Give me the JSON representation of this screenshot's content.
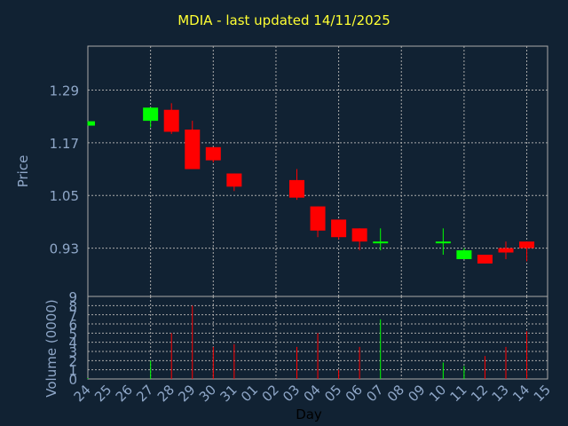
{
  "chart_data": [
    {
      "type": "candlestick",
      "title": "MDIA - last updated 14/11/2025",
      "ylabel": "Price",
      "ylim": [
        0.82,
        1.39
      ],
      "yticks": [
        "1.29",
        "1.17",
        "1.05",
        "0.93"
      ],
      "ytick_values": [
        1.29,
        1.17,
        1.05,
        0.93
      ],
      "grid": true,
      "colors": {
        "up": "#00ff00",
        "down": "#ff0000",
        "grid": "#aaaaaa",
        "text": "#8fa7c8",
        "title": "#ffff33",
        "background": "#112233"
      },
      "series": [
        {
          "x": "24",
          "open": 1.209,
          "high": 1.219,
          "low": 1.209,
          "close": 1.219
        },
        {
          "x": "27",
          "open": 1.22,
          "high": 1.25,
          "low": 1.205,
          "close": 1.25
        },
        {
          "x": "28",
          "open": 1.245,
          "high": 1.26,
          "low": 1.19,
          "close": 1.195
        },
        {
          "x": "29",
          "open": 1.2,
          "high": 1.22,
          "low": 1.11,
          "close": 1.11
        },
        {
          "x": "30",
          "open": 1.16,
          "high": 1.16,
          "low": 1.125,
          "close": 1.13
        },
        {
          "x": "31",
          "open": 1.1,
          "high": 1.1,
          "low": 1.06,
          "close": 1.07
        },
        {
          "x": "03",
          "open": 1.085,
          "high": 1.11,
          "low": 1.04,
          "close": 1.045
        },
        {
          "x": "04",
          "open": 1.025,
          "high": 1.025,
          "low": 0.955,
          "close": 0.97
        },
        {
          "x": "05",
          "open": 0.995,
          "high": 0.995,
          "low": 0.95,
          "close": 0.955
        },
        {
          "x": "06",
          "open": 0.975,
          "high": 0.975,
          "low": 0.925,
          "close": 0.945
        },
        {
          "x": "07",
          "open": 0.945,
          "high": 0.975,
          "low": 0.925,
          "close": 0.945
        },
        {
          "x": "10",
          "open": 0.945,
          "high": 0.975,
          "low": 0.915,
          "close": 0.945
        },
        {
          "x": "11",
          "open": 0.905,
          "high": 0.93,
          "low": 0.905,
          "close": 0.925
        },
        {
          "x": "12",
          "open": 0.915,
          "high": 0.915,
          "low": 0.895,
          "close": 0.895
        },
        {
          "x": "13",
          "open": 0.93,
          "high": 0.945,
          "low": 0.905,
          "close": 0.92
        },
        {
          "x": "14",
          "open": 0.945,
          "high": 0.945,
          "low": 0.9,
          "close": 0.93
        }
      ]
    },
    {
      "type": "bar",
      "ylabel": "Volume (0000)",
      "xlabel": "Day",
      "ylim": [
        0,
        9
      ],
      "yticks": [
        "9",
        "8",
        "7",
        "6",
        "5",
        "4",
        "3",
        "2",
        "1",
        "0"
      ],
      "ytick_values": [
        9,
        8,
        7,
        6,
        5,
        4,
        3,
        2,
        1,
        0
      ],
      "categories": [
        "24",
        "25",
        "26",
        "27",
        "28",
        "29",
        "30",
        "31",
        "01",
        "02",
        "03",
        "04",
        "05",
        "06",
        "07",
        "08",
        "09",
        "10",
        "11",
        "12",
        "13",
        "14",
        "15"
      ],
      "values": [
        {
          "x": "24",
          "v": 0.1,
          "dir": "up"
        },
        {
          "x": "27",
          "v": 2.0,
          "dir": "up"
        },
        {
          "x": "28",
          "v": 5.0,
          "dir": "down"
        },
        {
          "x": "29",
          "v": 8.0,
          "dir": "down"
        },
        {
          "x": "30",
          "v": 3.5,
          "dir": "down"
        },
        {
          "x": "31",
          "v": 3.8,
          "dir": "down"
        },
        {
          "x": "03",
          "v": 3.5,
          "dir": "down"
        },
        {
          "x": "04",
          "v": 5.0,
          "dir": "down"
        },
        {
          "x": "05",
          "v": 1.0,
          "dir": "down"
        },
        {
          "x": "06",
          "v": 3.5,
          "dir": "down"
        },
        {
          "x": "07",
          "v": 6.5,
          "dir": "up"
        },
        {
          "x": "10",
          "v": 1.8,
          "dir": "up"
        },
        {
          "x": "11",
          "v": 1.4,
          "dir": "up"
        },
        {
          "x": "12",
          "v": 2.5,
          "dir": "down"
        },
        {
          "x": "13",
          "v": 3.5,
          "dir": "down"
        },
        {
          "x": "14",
          "v": 5.2,
          "dir": "down"
        }
      ]
    }
  ]
}
